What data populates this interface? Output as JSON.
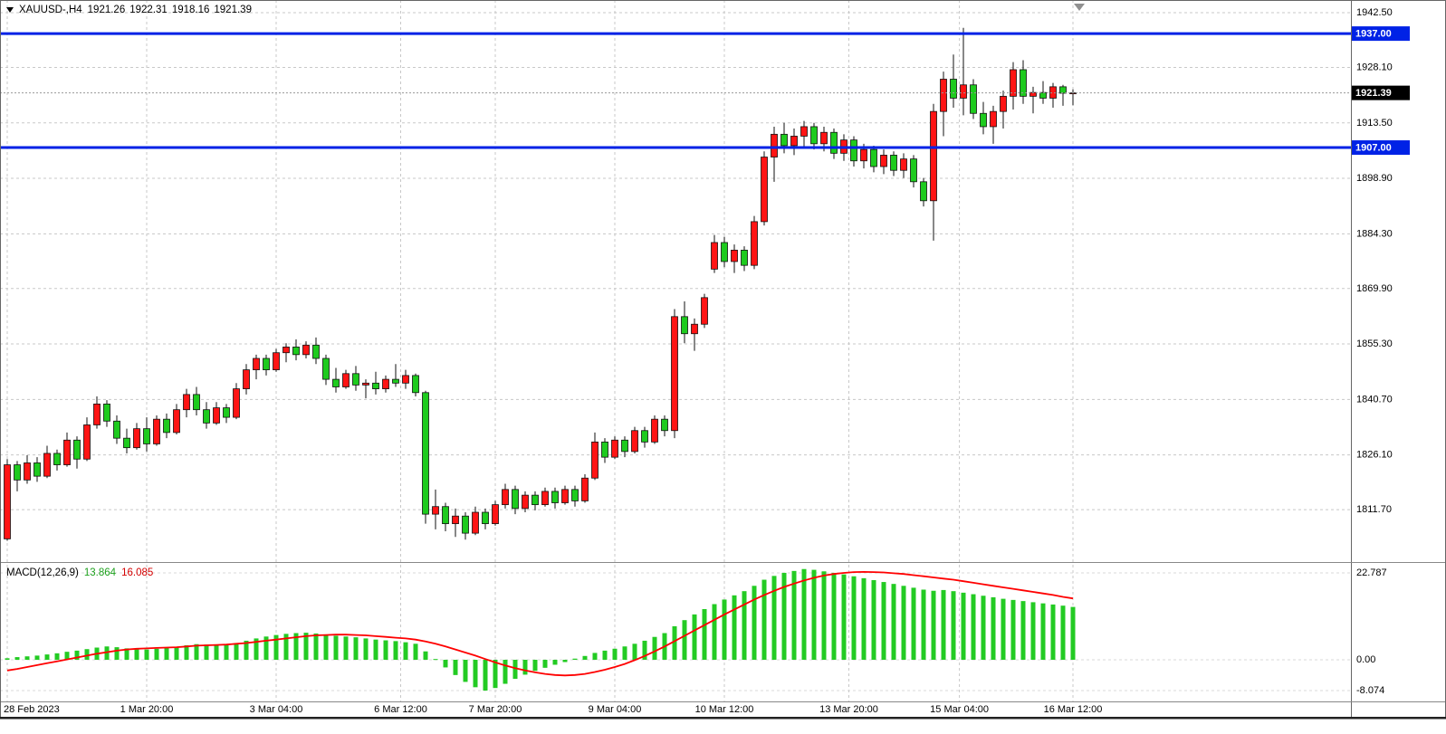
{
  "chart_data": {
    "type": "candlestick",
    "title": "XAUUSD-,H4",
    "current_ohlc": {
      "open": "1921.26",
      "high": "1922.31",
      "low": "1918.16",
      "close": "1921.39"
    },
    "colors": {
      "bull": "#ff1414",
      "bear": "#1ecb1e",
      "outline": "#111111",
      "grid": "#c8c8c8",
      "hline": "#0022e6",
      "bid_bg": "#000000",
      "separator": "#888888",
      "axis_line": "#666666"
    },
    "price_axis": {
      "top": 1945.84,
      "bottom": 1798.14,
      "ticks": [
        "1942.50",
        "1928.10",
        "1913.50",
        "1898.90",
        "1884.30",
        "1869.90",
        "1855.30",
        "1840.70",
        "1826.10",
        "1811.70"
      ]
    },
    "horizontal_lines": [
      {
        "price": 1937.0,
        "label": "1937.00"
      },
      {
        "price": 1907.0,
        "label": "1907.00"
      }
    ],
    "bid": {
      "value": 1921.39,
      "label": "1921.39"
    },
    "time_axis": [
      {
        "label": "28 Feb 2023",
        "i": 0
      },
      {
        "label": "1 Mar 20:00",
        "i": 14
      },
      {
        "label": "3 Mar 04:00",
        "i": 27
      },
      {
        "label": "6 Mar 12:00",
        "i": 39.5
      },
      {
        "label": "7 Mar 20:00",
        "i": 49
      },
      {
        "label": "9 Mar 04:00",
        "i": 61
      },
      {
        "label": "10 Mar 12:00",
        "i": 72
      },
      {
        "label": "13 Mar 20:00",
        "i": 84.5
      },
      {
        "label": "15 Mar 04:00",
        "i": 95.6
      },
      {
        "label": "16 Mar 12:00",
        "i": 107
      }
    ],
    "candles": [
      [
        1804,
        1825,
        1803.5,
        1823.5
      ],
      [
        1823.5,
        1824.5,
        1816.5,
        1819.5
      ],
      [
        1819.5,
        1826,
        1818.5,
        1824
      ],
      [
        1824,
        1825.5,
        1819,
        1820.5
      ],
      [
        1820.5,
        1828.5,
        1820,
        1826.5
      ],
      [
        1826.5,
        1827.5,
        1822,
        1823.5
      ],
      [
        1823.5,
        1832,
        1823,
        1830
      ],
      [
        1830,
        1831,
        1822.5,
        1825
      ],
      [
        1825,
        1836,
        1824.5,
        1834
      ],
      [
        1834,
        1841.5,
        1833,
        1839.5
      ],
      [
        1839.5,
        1840.5,
        1833.5,
        1835
      ],
      [
        1835,
        1836.5,
        1829,
        1830.5
      ],
      [
        1830.5,
        1833,
        1826.5,
        1828
      ],
      [
        1828,
        1834.5,
        1827.5,
        1833
      ],
      [
        1833,
        1836,
        1827,
        1829
      ],
      [
        1829,
        1836.5,
        1828.5,
        1835.5
      ],
      [
        1835.5,
        1837,
        1830.5,
        1832
      ],
      [
        1832,
        1839.5,
        1831.5,
        1838
      ],
      [
        1838,
        1843.5,
        1836,
        1842
      ],
      [
        1842,
        1844,
        1836.5,
        1838
      ],
      [
        1838,
        1840,
        1833,
        1834.5
      ],
      [
        1834.5,
        1840,
        1834,
        1838.5
      ],
      [
        1838.5,
        1839.5,
        1834.5,
        1836
      ],
      [
        1836,
        1845,
        1835.5,
        1843.5
      ],
      [
        1843.5,
        1850,
        1842,
        1848.5
      ],
      [
        1848.5,
        1852.5,
        1846,
        1851.5
      ],
      [
        1851.5,
        1852.5,
        1847,
        1848.5
      ],
      [
        1848.5,
        1854,
        1848,
        1853
      ],
      [
        1853,
        1855.5,
        1850.5,
        1854.5
      ],
      [
        1854.5,
        1856.5,
        1851,
        1852.5
      ],
      [
        1852.5,
        1856,
        1851.5,
        1855
      ],
      [
        1855,
        1857,
        1850,
        1851.5
      ],
      [
        1851.5,
        1852.5,
        1844.5,
        1846
      ],
      [
        1846,
        1849,
        1842.5,
        1844
      ],
      [
        1844,
        1848.5,
        1843.5,
        1847.5
      ],
      [
        1847.5,
        1849.5,
        1843,
        1844.5
      ],
      [
        1844.5,
        1846,
        1841,
        1845
      ],
      [
        1845,
        1848,
        1842,
        1843.5
      ],
      [
        1843.5,
        1847,
        1842.5,
        1846
      ],
      [
        1846,
        1850,
        1844,
        1845
      ],
      [
        1845,
        1848.5,
        1843.5,
        1847
      ],
      [
        1847,
        1847.5,
        1841.5,
        1842.5
      ],
      [
        1842.5,
        1843,
        1808,
        1810.5
      ],
      [
        1810.5,
        1817,
        1806.5,
        1812.5
      ],
      [
        1812.5,
        1813.5,
        1806,
        1808
      ],
      [
        1808,
        1812,
        1804.5,
        1810
      ],
      [
        1810,
        1811,
        1803.8,
        1805.5
      ],
      [
        1805.5,
        1812.5,
        1805,
        1811
      ],
      [
        1811,
        1812,
        1806.5,
        1808
      ],
      [
        1808,
        1814,
        1807.5,
        1813
      ],
      [
        1813,
        1818.5,
        1812,
        1817
      ],
      [
        1817,
        1818,
        1810.5,
        1812
      ],
      [
        1812,
        1816.5,
        1811,
        1815.5
      ],
      [
        1815.5,
        1816.5,
        1811.5,
        1813
      ],
      [
        1813,
        1817.5,
        1812.5,
        1816.5
      ],
      [
        1816.5,
        1817.5,
        1812,
        1813.5
      ],
      [
        1813.5,
        1818,
        1813,
        1817
      ],
      [
        1817,
        1818,
        1812.5,
        1814
      ],
      [
        1814,
        1821,
        1813.5,
        1820
      ],
      [
        1820,
        1832,
        1819.5,
        1829.5
      ],
      [
        1829.5,
        1830.5,
        1824,
        1825.5
      ],
      [
        1825.5,
        1831,
        1825,
        1830
      ],
      [
        1830,
        1831,
        1825.5,
        1827
      ],
      [
        1827,
        1833.5,
        1826.5,
        1832.5
      ],
      [
        1832.5,
        1833.5,
        1828,
        1829.5
      ],
      [
        1829.5,
        1836.5,
        1829,
        1835.5
      ],
      [
        1835.5,
        1836.5,
        1831,
        1832.5
      ],
      [
        1832.5,
        1864.5,
        1830.5,
        1862.5
      ],
      [
        1862.5,
        1866.5,
        1855.5,
        1858
      ],
      [
        1858,
        1862,
        1853.5,
        1860.5
      ],
      [
        1860.5,
        1868.5,
        1859.5,
        1867.5
      ],
      [
        1875,
        1884,
        1874,
        1882
      ],
      [
        1882,
        1883.5,
        1875.5,
        1877
      ],
      [
        1877,
        1881.5,
        1874,
        1880
      ],
      [
        1880,
        1881,
        1874.5,
        1876
      ],
      [
        1876,
        1889,
        1875,
        1887.5
      ],
      [
        1887.5,
        1906,
        1886.5,
        1904.5
      ],
      [
        1904.5,
        1912.5,
        1898,
        1910.5
      ],
      [
        1910.5,
        1913.5,
        1905.5,
        1907.5
      ],
      [
        1907.5,
        1912,
        1905,
        1910
      ],
      [
        1910,
        1914,
        1907,
        1912.5
      ],
      [
        1912.5,
        1913.5,
        1906.5,
        1908
      ],
      [
        1908,
        1912.5,
        1906,
        1911
      ],
      [
        1911,
        1912,
        1904,
        1905.5
      ],
      [
        1905.5,
        1910.5,
        1903.5,
        1909
      ],
      [
        1909,
        1910,
        1902,
        1903.5
      ],
      [
        1903.5,
        1908,
        1901.5,
        1906.5
      ],
      [
        1906.5,
        1907.5,
        1900.5,
        1902
      ],
      [
        1902,
        1906.5,
        1900,
        1905
      ],
      [
        1905,
        1906,
        1899.5,
        1901
      ],
      [
        1901,
        1905.5,
        1899,
        1904
      ],
      [
        1904,
        1905,
        1896.5,
        1898
      ],
      [
        1898,
        1899,
        1891.5,
        1893
      ],
      [
        1893,
        1918.5,
        1882.5,
        1916.5
      ],
      [
        1916.5,
        1927,
        1910,
        1925
      ],
      [
        1925,
        1931.5,
        1917.5,
        1920
      ],
      [
        1920,
        1938.5,
        1915.5,
        1923.5
      ],
      [
        1923.5,
        1925,
        1914.5,
        1916
      ],
      [
        1916,
        1919,
        1910.5,
        1912.5
      ],
      [
        1912.5,
        1918,
        1908,
        1916.5
      ],
      [
        1916.5,
        1922,
        1912,
        1920.5
      ],
      [
        1920.5,
        1929.5,
        1917,
        1927.5
      ],
      [
        1927.5,
        1930,
        1918.5,
        1920.5
      ],
      [
        1920.5,
        1923,
        1916,
        1921.5
      ],
      [
        1921.5,
        1924.5,
        1918.5,
        1920
      ],
      [
        1920,
        1924,
        1917.5,
        1923
      ],
      [
        1923,
        1923.5,
        1918,
        1921.3
      ],
      [
        1921.26,
        1922.31,
        1918.16,
        1921.39
      ]
    ],
    "macd": {
      "label": "MACD(12,26,9)",
      "main_value": "13.864",
      "signal_value": "16.085",
      "colors": {
        "histogram": "#23cb23",
        "signal": "#ff0000"
      },
      "axis": [
        {
          "label": "22.787",
          "value": 22.787
        },
        {
          "label": "0.00",
          "value": 0
        },
        {
          "label": "-8.074",
          "value": -8.074
        }
      ],
      "histogram": [
        0.4,
        0.7,
        0.9,
        1.1,
        1.4,
        1.7,
        2.1,
        2.4,
        2.8,
        3.2,
        3.5,
        3.3,
        3.0,
        2.8,
        2.7,
        2.9,
        3.1,
        3.4,
        3.8,
        4.1,
        4.0,
        3.8,
        3.9,
        4.4,
        5.0,
        5.6,
        6.1,
        6.5,
        6.8,
        7.0,
        7.1,
        6.9,
        6.6,
        6.3,
        6.1,
        5.9,
        5.6,
        5.3,
        5.1,
        4.9,
        4.6,
        4.2,
        2.2,
        0.2,
        -2.0,
        -4.0,
        -5.8,
        -7.2,
        -8.074,
        -7.4,
        -6.3,
        -5.0,
        -3.9,
        -2.9,
        -2.1,
        -1.3,
        -0.6,
        0.3,
        1.0,
        1.8,
        2.4,
        2.9,
        3.5,
        4.2,
        5.0,
        6.0,
        7.0,
        8.8,
        10.4,
        11.9,
        13.3,
        14.6,
        15.8,
        16.9,
        18.0,
        19.4,
        21.0,
        22.0,
        22.8,
        23.3,
        23.8,
        23.6,
        23.2,
        22.8,
        22.4,
        21.9,
        21.4,
        20.9,
        20.4,
        19.9,
        19.4,
        18.9,
        18.4,
        18.1,
        18.3,
        18.0,
        17.6,
        17.2,
        16.8,
        16.4,
        16.0,
        15.7,
        15.4,
        15.1,
        14.8,
        14.5,
        14.2,
        13.864
      ],
      "signal": [
        -2.8,
        -2.4,
        -1.9,
        -1.4,
        -0.9,
        -0.4,
        0.1,
        0.6,
        1.1,
        1.6,
        2.0,
        2.4,
        2.7,
        2.9,
        3.0,
        3.1,
        3.2,
        3.3,
        3.5,
        3.7,
        3.8,
        3.9,
        4.0,
        4.2,
        4.4,
        4.7,
        5.0,
        5.3,
        5.6,
        5.9,
        6.2,
        6.4,
        6.5,
        6.6,
        6.6,
        6.5,
        6.4,
        6.2,
        6.0,
        5.8,
        5.6,
        5.3,
        4.8,
        4.2,
        3.5,
        2.7,
        1.9,
        1.1,
        0.2,
        -0.7,
        -1.5,
        -2.2,
        -2.8,
        -3.3,
        -3.7,
        -4.0,
        -4.1,
        -4.0,
        -3.7,
        -3.2,
        -2.6,
        -1.9,
        -1.1,
        -0.1,
        1.0,
        2.2,
        3.5,
        4.9,
        6.3,
        7.7,
        9.1,
        10.5,
        11.9,
        13.2,
        14.5,
        15.8,
        17.0,
        18.1,
        19.1,
        20.0,
        20.8,
        21.5,
        22.1,
        22.5,
        22.8,
        23.0,
        23.05,
        23.0,
        22.9,
        22.7,
        22.5,
        22.2,
        21.9,
        21.6,
        21.3,
        21.0,
        20.6,
        20.2,
        19.8,
        19.4,
        19.0,
        18.6,
        18.2,
        17.8,
        17.4,
        17.0,
        16.5,
        16.085
      ]
    }
  }
}
